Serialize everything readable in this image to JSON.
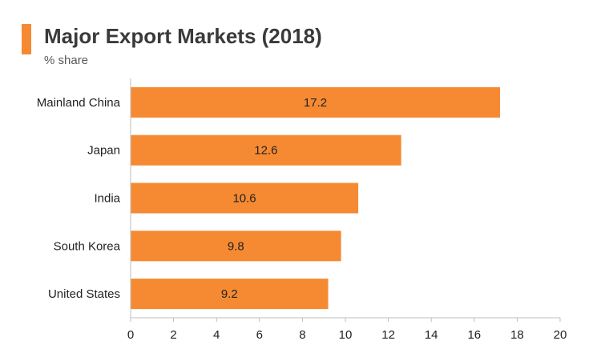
{
  "header": {
    "title": "Major Export Markets (2018)",
    "subtitle": "% share"
  },
  "colors": {
    "bar": "#f58a33",
    "accent": "#f58a33",
    "axis": "#bfbfbf"
  },
  "chart_data": {
    "type": "bar",
    "orientation": "horizontal",
    "title": "Major Export Markets (2018)",
    "subtitle": "% share",
    "categories": [
      "Mainland China",
      "Japan",
      "India",
      "South Korea",
      "United States"
    ],
    "values": [
      17.2,
      12.6,
      10.6,
      9.8,
      9.2
    ],
    "value_labels": [
      "17.2",
      "12.6",
      "10.6",
      "9.8",
      "9.2"
    ],
    "xlim": [
      0,
      20
    ],
    "xticks": [
      0,
      2,
      4,
      6,
      8,
      10,
      12,
      14,
      16,
      18,
      20
    ],
    "grid": false,
    "legend": "none"
  }
}
